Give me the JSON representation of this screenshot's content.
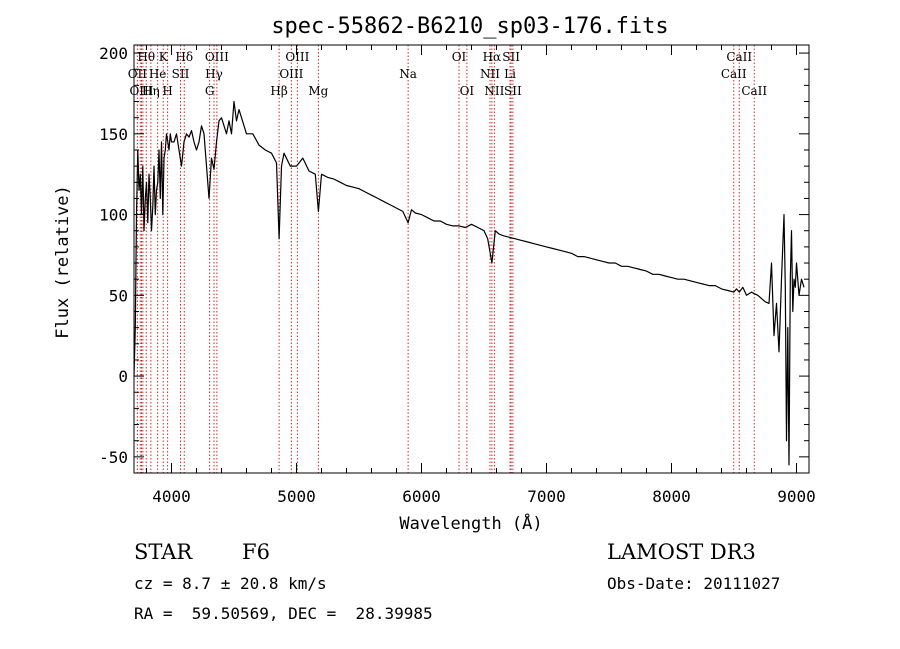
{
  "chart_data": {
    "type": "line",
    "title": "spec-55862-B6210_sp03-176.fits",
    "xlabel": "Wavelength (Å)",
    "ylabel": "Flux (relative)",
    "xlim": [
      3700,
      9100
    ],
    "ylim": [
      -60,
      205
    ],
    "xticks": [
      4000,
      5000,
      6000,
      7000,
      8000,
      9000
    ],
    "yticks": [
      -50,
      0,
      50,
      100,
      150,
      200
    ],
    "series": [
      {
        "name": "flux",
        "x": [
          3700,
          3710,
          3720,
          3730,
          3740,
          3750,
          3760,
          3770,
          3780,
          3790,
          3800,
          3810,
          3820,
          3830,
          3840,
          3850,
          3860,
          3870,
          3880,
          3890,
          3900,
          3910,
          3920,
          3930,
          3940,
          3950,
          3960,
          3970,
          3980,
          3990,
          4000,
          4020,
          4040,
          4060,
          4080,
          4100,
          4120,
          4140,
          4160,
          4180,
          4200,
          4220,
          4240,
          4260,
          4280,
          4300,
          4320,
          4340,
          4360,
          4380,
          4400,
          4420,
          4440,
          4460,
          4480,
          4500,
          4520,
          4540,
          4560,
          4580,
          4600,
          4650,
          4700,
          4750,
          4800,
          4840,
          4861,
          4880,
          4900,
          4950,
          5000,
          5050,
          5100,
          5150,
          5175,
          5200,
          5250,
          5300,
          5350,
          5400,
          5450,
          5500,
          5550,
          5600,
          5650,
          5700,
          5750,
          5800,
          5850,
          5893,
          5920,
          5950,
          6000,
          6050,
          6100,
          6150,
          6200,
          6250,
          6300,
          6350,
          6400,
          6450,
          6500,
          6530,
          6563,
          6590,
          6620,
          6650,
          6700,
          6750,
          6800,
          6850,
          6900,
          6950,
          7000,
          7050,
          7100,
          7150,
          7200,
          7250,
          7300,
          7350,
          7400,
          7450,
          7500,
          7550,
          7600,
          7650,
          7700,
          7750,
          7800,
          7850,
          7900,
          7950,
          8000,
          8050,
          8100,
          8150,
          8200,
          8250,
          8300,
          8350,
          8400,
          8450,
          8498,
          8520,
          8542,
          8570,
          8600,
          8640,
          8662,
          8690,
          8720,
          8750,
          8780,
          8800,
          8820,
          8840,
          8860,
          8880,
          8900,
          8910,
          8920,
          8930,
          8940,
          8950,
          8960,
          8970,
          8980,
          8990,
          9000,
          9020,
          9040,
          9060
        ],
        "values": [
          0,
          30,
          100,
          140,
          115,
          125,
          100,
          130,
          90,
          110,
          120,
          95,
          125,
          110,
          90,
          105,
          130,
          100,
          115,
          120,
          140,
          110,
          145,
          100,
          135,
          140,
          150,
          145,
          140,
          150,
          145,
          145,
          150,
          140,
          130,
          145,
          150,
          148,
          152,
          145,
          140,
          145,
          155,
          150,
          130,
          110,
          135,
          128,
          145,
          158,
          160,
          155,
          150,
          158,
          150,
          170,
          158,
          165,
          160,
          155,
          150,
          150,
          143,
          140,
          138,
          132,
          85,
          130,
          138,
          130,
          130,
          135,
          127,
          125,
          102,
          125,
          123,
          122,
          120,
          118,
          117,
          116,
          114,
          112,
          110,
          108,
          106,
          104,
          102,
          95,
          103,
          101,
          100,
          98,
          96,
          96,
          94,
          93,
          93,
          92,
          94,
          92,
          90,
          85,
          70,
          90,
          88,
          87,
          86,
          85,
          84,
          83,
          82,
          81,
          80,
          79,
          78,
          77,
          76,
          74,
          74,
          73,
          72,
          71,
          70,
          70,
          68,
          68,
          67,
          66,
          65,
          63,
          63,
          62,
          61,
          60,
          60,
          59,
          58,
          57,
          56,
          56,
          54,
          53,
          52,
          54,
          52,
          55,
          50,
          52,
          51,
          50,
          48,
          46,
          45,
          70,
          25,
          45,
          15,
          60,
          100,
          55,
          -40,
          30,
          -55,
          60,
          90,
          40,
          60,
          55,
          70,
          50,
          60,
          55
        ]
      }
    ],
    "lines": [
      {
        "label": "Hθ",
        "x": 3798,
        "row": 0
      },
      {
        "label": "K",
        "x": 3934,
        "row": 0
      },
      {
        "label": "Hδ",
        "x": 4102,
        "row": 0
      },
      {
        "label": "OIII",
        "x": 4363,
        "row": 0
      },
      {
        "label": "OIII",
        "x": 5007,
        "row": 0
      },
      {
        "label": "OI",
        "x": 6300,
        "row": 0
      },
      {
        "label": "Hα",
        "x": 6563,
        "row": 0
      },
      {
        "label": "SII",
        "x": 6717,
        "row": 0
      },
      {
        "label": "CaII",
        "x": 8542,
        "row": 0
      },
      {
        "label": "OII",
        "x": 3727,
        "row": 1
      },
      {
        "label": "He",
        "x": 3889,
        "row": 1
      },
      {
        "label": "SII",
        "x": 4072,
        "row": 1
      },
      {
        "label": "Hγ",
        "x": 4340,
        "row": 1
      },
      {
        "label": "OIII",
        "x": 4959,
        "row": 1
      },
      {
        "label": "Na",
        "x": 5893,
        "row": 1
      },
      {
        "label": "NII",
        "x": 6548,
        "row": 1
      },
      {
        "label": "Li",
        "x": 6708,
        "row": 1
      },
      {
        "label": "CaII",
        "x": 8498,
        "row": 1
      },
      {
        "label": "OIII",
        "x": 3760,
        "row": 2
      },
      {
        "label": "Hη",
        "x": 3835,
        "row": 2
      },
      {
        "label": "H",
        "x": 3969,
        "row": 2
      },
      {
        "label": "G",
        "x": 4305,
        "row": 2
      },
      {
        "label": "Hβ",
        "x": 4861,
        "row": 2
      },
      {
        "label": "Mg",
        "x": 5175,
        "row": 2
      },
      {
        "label": "OI",
        "x": 6363,
        "row": 2
      },
      {
        "label": "NII",
        "x": 6583,
        "row": 2
      },
      {
        "label": "SII",
        "x": 6731,
        "row": 2
      },
      {
        "label": "CaII",
        "x": 8662,
        "row": 2
      }
    ],
    "extra_marker_lines": [
      3750,
      3771,
      3889,
      3934,
      3969,
      4102,
      4340,
      4363,
      4861,
      4959,
      5007,
      6300,
      6548,
      6563,
      6583,
      6717,
      6731,
      8498,
      8542
    ],
    "line_color": "#d22a2a"
  },
  "info": {
    "obj_class": "STAR",
    "subclass": "F6",
    "survey": "LAMOST DR3",
    "cz": "cz = 8.7 ± 20.8 km/s",
    "obs_date": "Obs-Date: 20111027",
    "coords": "RA =  59.50569, DEC =  28.39985"
  }
}
